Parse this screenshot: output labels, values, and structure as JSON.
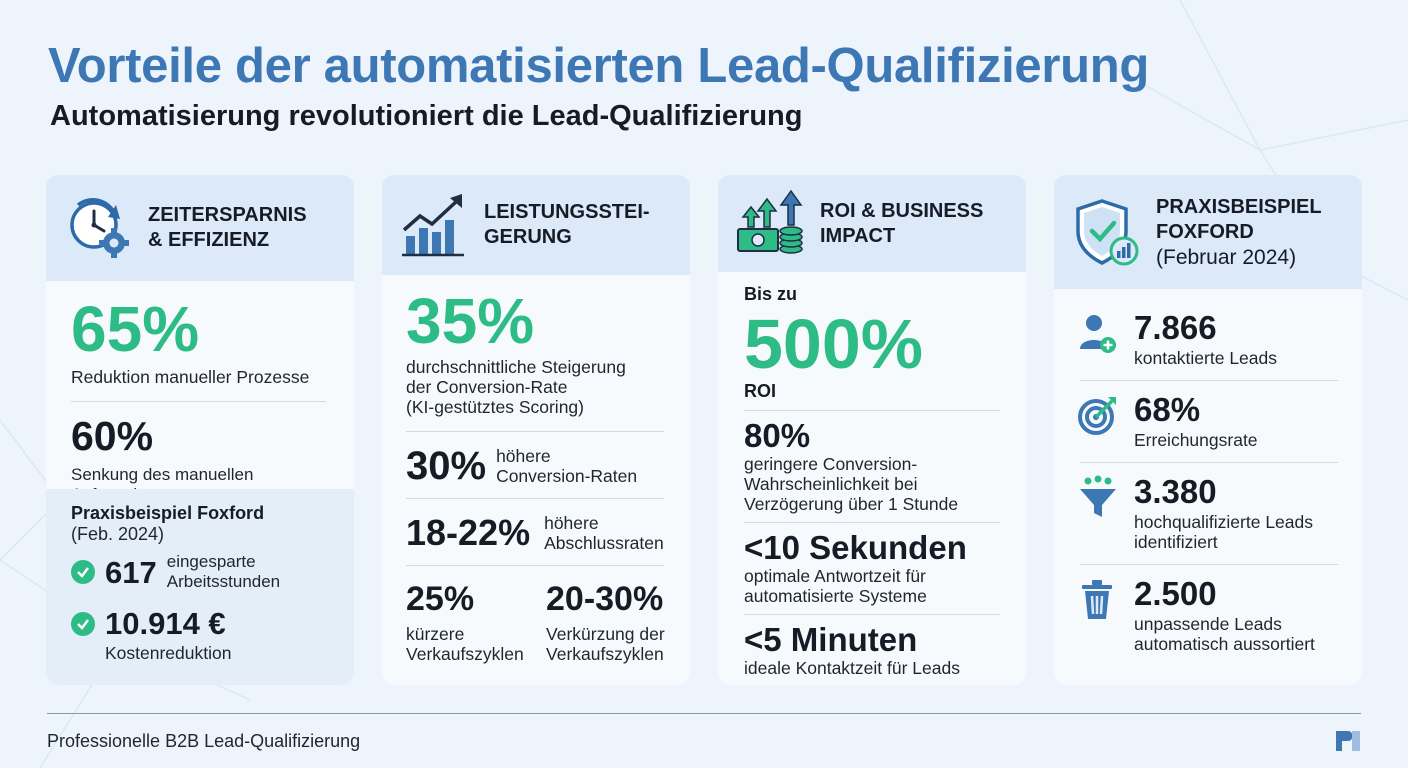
{
  "header": {
    "title": "Vorteile der automatisierten Lead-Qualifizierung",
    "subtitle": "Automatisierung revolutioniert die Lead-Qualifizierung"
  },
  "colors": {
    "title": "#3d78b5",
    "accent_green": "#2dbb86",
    "card_head": "#dbe9f8",
    "background": "#eef4fb"
  },
  "cards": {
    "zeit": {
      "title_line1": "ZEITERSPARNIS",
      "title_line2": "& EFFIZIENZ",
      "icon": "clock-gear-icon",
      "stat1_value": "65%",
      "stat1_label": "Reduktion manueller Prozesse",
      "stat2_value": "60%",
      "stat2_label": "Senkung des manuellen Aufwands",
      "example_title": "Praxisbeispiel Foxford",
      "example_date": "(Feb. 2024)",
      "item1_value": "617",
      "item1_label_line1": "eingesparte",
      "item1_label_line2": "Arbeitsstunden",
      "item2_value": "10.914 €",
      "item2_label": "Kostenreduktion"
    },
    "leistung": {
      "title_line1": "LEISTUNGSSTEI-",
      "title_line2": "GERUNG",
      "icon": "growth-chart-icon",
      "stat1_value": "35%",
      "stat1_label_line1": "durchschnittliche Steigerung",
      "stat1_label_line2": "der Conversion-Rate",
      "stat1_label_line3": "(KI-gestütztes Scoring)",
      "stat2_value": "30%",
      "stat2_label_line1": "höhere",
      "stat2_label_line2": "Conversion-Raten",
      "stat3_value": "18-22%",
      "stat3_label_line1": "höhere",
      "stat3_label_line2": "Abschlussraten",
      "stat4_value": "25%",
      "stat4_label_line1": "kürzere",
      "stat4_label_line2": "Verkaufszyklen",
      "stat5_value": "20-30%",
      "stat5_label_line1": "Verkürzung der",
      "stat5_label_line2": "Verkaufszyklen"
    },
    "roi": {
      "title_line1": "ROI & BUSINESS",
      "title_line2": "IMPACT",
      "icon": "money-growth-icon",
      "prefix": "Bis zu",
      "stat1_value": "500%",
      "stat1_label": "ROI",
      "stat2_value": "80%",
      "stat2_label_line1": "geringere Conversion-",
      "stat2_label_line2": "Wahrscheinlichkeit bei",
      "stat2_label_line3": "Verzögerung über 1 Stunde",
      "stat3_value": "<10 Sekunden",
      "stat3_label_line1": "optimale Antwortzeit für",
      "stat3_label_line2": "automatisierte Systeme",
      "stat4_value": "<5 Minuten",
      "stat4_label": "ideale Kontaktzeit für Leads"
    },
    "praxis": {
      "title_line1": "PRAXISBEISPIEL",
      "title_line2": "FOXFORD",
      "title_line3": "(Februar 2024)",
      "icon": "shield-check-icon",
      "item1_value": "7.866",
      "item1_label": "kontaktierte Leads",
      "item1_icon": "user-add-icon",
      "item2_value": "68%",
      "item2_label": "Erreichungsrate",
      "item2_icon": "target-icon",
      "item3_value": "3.380",
      "item3_label_line1": "hochqualifizierte Leads",
      "item3_label_line2": "identifiziert",
      "item3_icon": "funnel-icon",
      "item4_value": "2.500",
      "item4_label_line1": "unpassende Leads",
      "item4_label_line2": "automatisch aussortiert",
      "item4_icon": "trash-icon"
    }
  },
  "footer": {
    "text": "Professionelle B2B Lead-Qualifizierung",
    "logo_icon": "brand-logo-icon"
  }
}
